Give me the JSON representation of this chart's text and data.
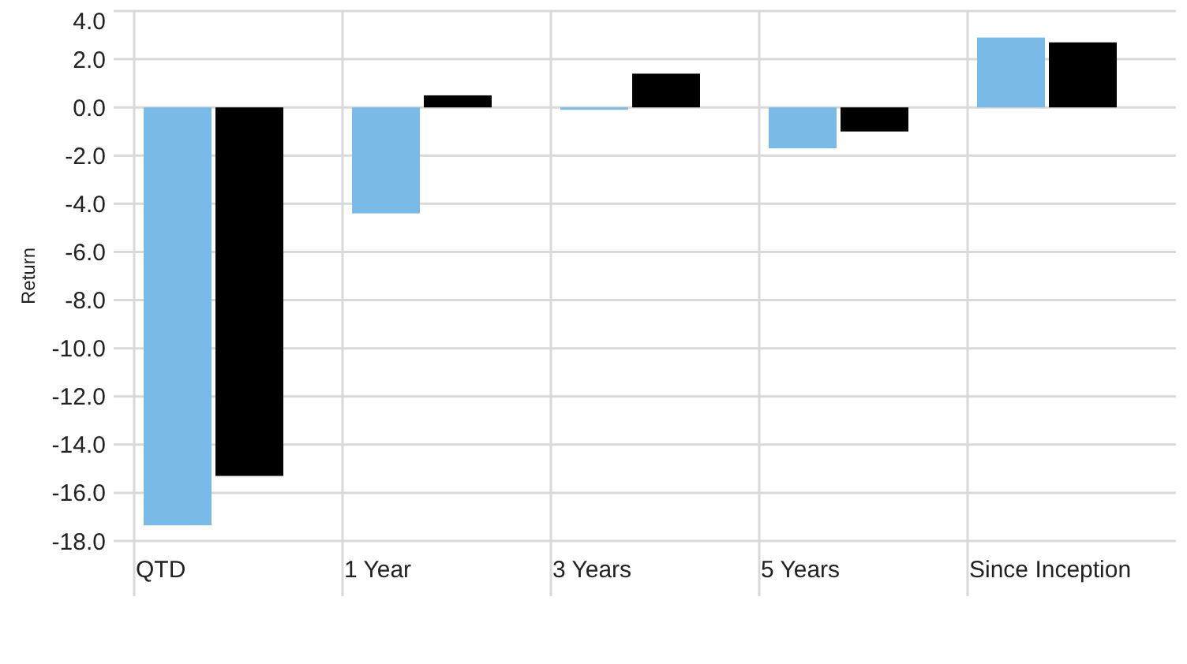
{
  "chart_data": {
    "type": "bar",
    "ylabel": "Return",
    "categories": [
      "QTD",
      "1 Year",
      "3 Years",
      "5 Years",
      "Since Inception"
    ],
    "series": [
      {
        "color": "#79bbe6",
        "values": [
          -17.35,
          -4.4,
          -0.1,
          -1.7,
          2.9
        ]
      },
      {
        "color": "#000000",
        "values": [
          -15.3,
          0.5,
          1.4,
          -1.0,
          2.7
        ]
      }
    ],
    "ylim": [
      -18,
      4
    ],
    "yticks": [
      {
        "value": -18,
        "label": "-18.0"
      },
      {
        "value": -16,
        "label": "-16.0"
      },
      {
        "value": -14,
        "label": "-14.0"
      },
      {
        "value": -12,
        "label": "-12.0"
      },
      {
        "value": -10,
        "label": "-10.0"
      },
      {
        "value": -8,
        "label": "-8.0"
      },
      {
        "value": -6,
        "label": "-6.0"
      },
      {
        "value": -4,
        "label": "-4.0"
      },
      {
        "value": -2,
        "label": "-2.0"
      },
      {
        "value": 0,
        "label": "0.0"
      },
      {
        "value": 2,
        "label": "2.0"
      },
      {
        "value": 4,
        "label": "4.0"
      }
    ],
    "grid": true
  }
}
